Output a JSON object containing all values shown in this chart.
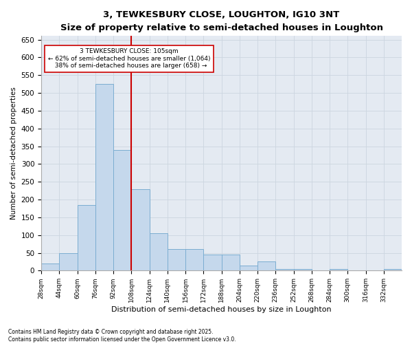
{
  "title": "3, TEWKESBURY CLOSE, LOUGHTON, IG10 3NT",
  "subtitle": "Size of property relative to semi-detached houses in Loughton",
  "xlabel": "Distribution of semi-detached houses by size in Loughton",
  "ylabel": "Number of semi-detached properties",
  "property_label": "3 TEWKESBURY CLOSE: 105sqm",
  "pct_smaller": 62,
  "pct_larger": 38,
  "count_smaller": 1064,
  "count_larger": 658,
  "vline_x": 108,
  "bins": [
    28,
    44,
    60,
    76,
    92,
    108,
    124,
    140,
    156,
    172,
    188,
    204,
    220,
    236,
    252,
    268,
    284,
    300,
    316,
    332,
    348
  ],
  "bar_values": [
    20,
    50,
    185,
    525,
    340,
    230,
    105,
    60,
    60,
    45,
    45,
    15,
    25,
    5,
    5,
    0,
    5,
    0,
    0,
    5
  ],
  "bar_color": "#c5d8ec",
  "bar_edge_color": "#7badd1",
  "vline_color": "#cc0000",
  "grid_color": "#ccd5e0",
  "bg_color": "#e4eaf2",
  "annotation_box_color": "#cc0000",
  "ylim": [
    0,
    660
  ],
  "yticks": [
    0,
    50,
    100,
    150,
    200,
    250,
    300,
    350,
    400,
    450,
    500,
    550,
    600,
    650
  ],
  "footnote1": "Contains HM Land Registry data © Crown copyright and database right 2025.",
  "footnote2": "Contains public sector information licensed under the Open Government Licence v3.0."
}
